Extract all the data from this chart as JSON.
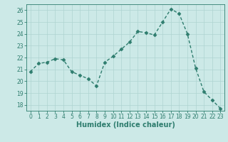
{
  "x": [
    0,
    1,
    2,
    3,
    4,
    5,
    6,
    7,
    8,
    9,
    10,
    11,
    12,
    13,
    14,
    15,
    16,
    17,
    18,
    19,
    20,
    21,
    22,
    23
  ],
  "y": [
    20.8,
    21.5,
    21.6,
    21.9,
    21.8,
    20.8,
    20.5,
    20.2,
    19.6,
    21.6,
    22.1,
    22.7,
    23.3,
    24.2,
    24.1,
    23.9,
    25.0,
    26.1,
    25.7,
    24.0,
    21.1,
    19.1,
    18.4,
    17.7
  ],
  "line_color": "#2e7d6e",
  "marker": "D",
  "markersize": 2.5,
  "linewidth": 1.0,
  "bg_color": "#cce9e7",
  "grid_color": "#aed4d1",
  "xlabel": "Humidex (Indice chaleur)",
  "ylim": [
    17.5,
    26.5
  ],
  "xlim": [
    -0.5,
    23.5
  ],
  "yticks": [
    18,
    19,
    20,
    21,
    22,
    23,
    24,
    25,
    26
  ],
  "xticks": [
    0,
    1,
    2,
    3,
    4,
    5,
    6,
    7,
    8,
    9,
    10,
    11,
    12,
    13,
    14,
    15,
    16,
    17,
    18,
    19,
    20,
    21,
    22,
    23
  ],
  "tick_color": "#2e7d6e",
  "label_color": "#2e7d6e",
  "xlabel_fontsize": 7,
  "tick_fontsize": 5.5
}
